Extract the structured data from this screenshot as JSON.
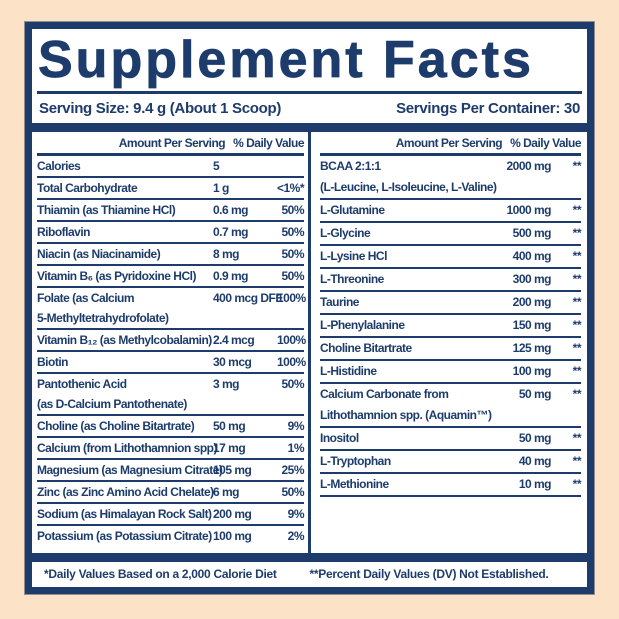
{
  "title": "Supplement Facts",
  "serving": {
    "size_label": "Serving Size: 9.4 g (About 1 Scoop)",
    "per_container": "Servings Per Container: 30"
  },
  "table": {
    "header": {
      "amount": "Amount Per Serving",
      "dv": "% Daily Value"
    },
    "left_rows": [
      {
        "label": "Calories",
        "amount": "5",
        "dv": ""
      },
      {
        "label": "Total Carbohydrate",
        "amount": "1 g",
        "dv": "<1%*"
      },
      {
        "label": "Thiamin (as Thiamine HCl)",
        "amount": "0.6 mg",
        "dv": "50%"
      },
      {
        "label": "Riboflavin",
        "amount": "0.7 mg",
        "dv": "50%"
      },
      {
        "label": "Niacin (as Niacinamide)",
        "amount": "8 mg",
        "dv": "50%"
      },
      {
        "label": "Vitamin B₆ (as Pyridoxine HCl)",
        "amount": "0.9 mg",
        "dv": "50%"
      },
      {
        "label": "Folate (as Calcium",
        "label2": "5-Methyltetrahydrofolate)",
        "amount": "400 mcg DFE",
        "dv": "100%"
      },
      {
        "label": "Vitamin B₁₂ (as Methylcobalamin)",
        "amount": "2.4 mcg",
        "dv": "100%"
      },
      {
        "label": "Biotin",
        "amount": "30 mcg",
        "dv": "100%"
      },
      {
        "label": "Pantothenic Acid",
        "label2": "(as D-Calcium Pantothenate)",
        "amount": "3 mg",
        "dv": "50%"
      },
      {
        "label": "Choline (as Choline Bitartrate)",
        "amount": "50 mg",
        "dv": "9%"
      },
      {
        "label": "Calcium (from Lithothamnion spp)",
        "amount": "17 mg",
        "dv": "1%"
      },
      {
        "label": "Magnesium (as Magnesium Citrate)",
        "amount": "105 mg",
        "dv": "25%"
      },
      {
        "label": "Zinc (as Zinc Amino Acid Chelate)",
        "amount": "6 mg",
        "dv": "50%"
      },
      {
        "label": "Sodium (as Himalayan Rock Salt)",
        "amount": "200 mg",
        "dv": "9%"
      },
      {
        "label": "Potassium (as Potassium Citrate)",
        "amount": "100 mg",
        "dv": "2%"
      }
    ],
    "right_rows": [
      {
        "label": "BCAA 2:1:1",
        "label2": "(L-Leucine, L-Isoleucine, L-Valine)",
        "amount": "2000 mg",
        "dv": "**"
      },
      {
        "label": "L-Glutamine",
        "amount": "1000 mg",
        "dv": "**"
      },
      {
        "label": "L-Glycine",
        "amount": "500 mg",
        "dv": "**"
      },
      {
        "label": "L-Lysine HCl",
        "amount": "400 mg",
        "dv": "**"
      },
      {
        "label": "L-Threonine",
        "amount": "300 mg",
        "dv": "**"
      },
      {
        "label": "Taurine",
        "amount": "200 mg",
        "dv": "**"
      },
      {
        "label": "L-Phenylalanine",
        "amount": "150 mg",
        "dv": "**"
      },
      {
        "label": "Choline Bitartrate",
        "amount": "125 mg",
        "dv": "**"
      },
      {
        "label": "L-Histidine",
        "amount": "100 mg",
        "dv": "**"
      },
      {
        "label": "Calcium Carbonate from",
        "label2": "Lithothamnion spp. (Aquamin™)",
        "amount": "50 mg",
        "dv": "**"
      },
      {
        "label": "Inositol",
        "amount": "50 mg",
        "dv": "**"
      },
      {
        "label": "L-Tryptophan",
        "amount": "40 mg",
        "dv": "**"
      },
      {
        "label": "L-Methionine",
        "amount": "10 mg",
        "dv": "**"
      }
    ]
  },
  "footnotes": {
    "left": "*Daily Values Based on a 2,000 Calorie Diet",
    "right": "**Percent Daily Values (DV) Not Established."
  },
  "colors": {
    "navy": "#1d3c6c",
    "peach": "#fce2c7",
    "panel": "#ffffff"
  }
}
